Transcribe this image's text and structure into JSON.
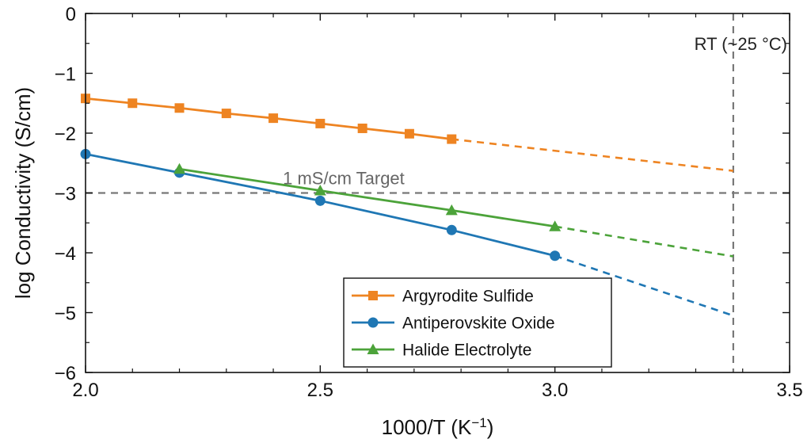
{
  "chart_data": {
    "type": "line",
    "title": "",
    "xlabel": "1000/T (K",
    "xlabel_sup": "−1",
    "xlabel_close": ")",
    "ylabel": "log Conductivity (S/cm)",
    "xlim": [
      2.0,
      3.5
    ],
    "ylim": [
      -6,
      0
    ],
    "x_ticks": [
      2.0,
      2.5,
      3.0,
      3.5
    ],
    "x_tick_labels": [
      "2.0",
      "2.5",
      "3.0",
      "3.5"
    ],
    "y_ticks": [
      0,
      -1,
      -2,
      -3,
      -4,
      -5,
      -6
    ],
    "y_tick_labels": [
      "0",
      "−1",
      "−2",
      "−3",
      "−4",
      "−5",
      "−6"
    ],
    "grid": false,
    "legend_position": "bottom-center",
    "series": [
      {
        "name": "Argyrodite Sulfide",
        "color": "#ee8422",
        "marker": "square",
        "x": [
          2.0,
          2.1,
          2.2,
          2.3,
          2.4,
          2.5,
          2.59,
          2.69,
          2.78
        ],
        "y": [
          -1.42,
          -1.5,
          -1.58,
          -1.67,
          -1.75,
          -1.84,
          -1.92,
          -2.01,
          -2.1
        ],
        "extrapolation": {
          "x": [
            2.78,
            3.38
          ],
          "y": [
            -2.1,
            -2.63
          ]
        }
      },
      {
        "name": "Antiperovskite Oxide",
        "color": "#1f77b4",
        "marker": "circle",
        "x": [
          2.0,
          2.2,
          2.5,
          2.78,
          3.0
        ],
        "y": [
          -2.35,
          -2.66,
          -3.13,
          -3.62,
          -4.05
        ],
        "extrapolation": {
          "x": [
            3.0,
            3.38
          ],
          "y": [
            -4.05,
            -5.05
          ]
        }
      },
      {
        "name": "Halide Electrolyte",
        "color": "#4ca33a",
        "marker": "triangle",
        "x": [
          2.2,
          2.5,
          2.78,
          3.0
        ],
        "y": [
          -2.6,
          -2.96,
          -3.29,
          -3.56
        ],
        "extrapolation": {
          "x": [
            3.0,
            3.38
          ],
          "y": [
            -3.56,
            -4.06
          ]
        }
      }
    ],
    "reference_lines": [
      {
        "orientation": "horizontal",
        "value": -3,
        "label": "1 mS/cm Target",
        "color": "#777777"
      },
      {
        "orientation": "vertical",
        "value": 3.38,
        "label": "RT (~25 °C)",
        "color": "#777777"
      }
    ]
  }
}
